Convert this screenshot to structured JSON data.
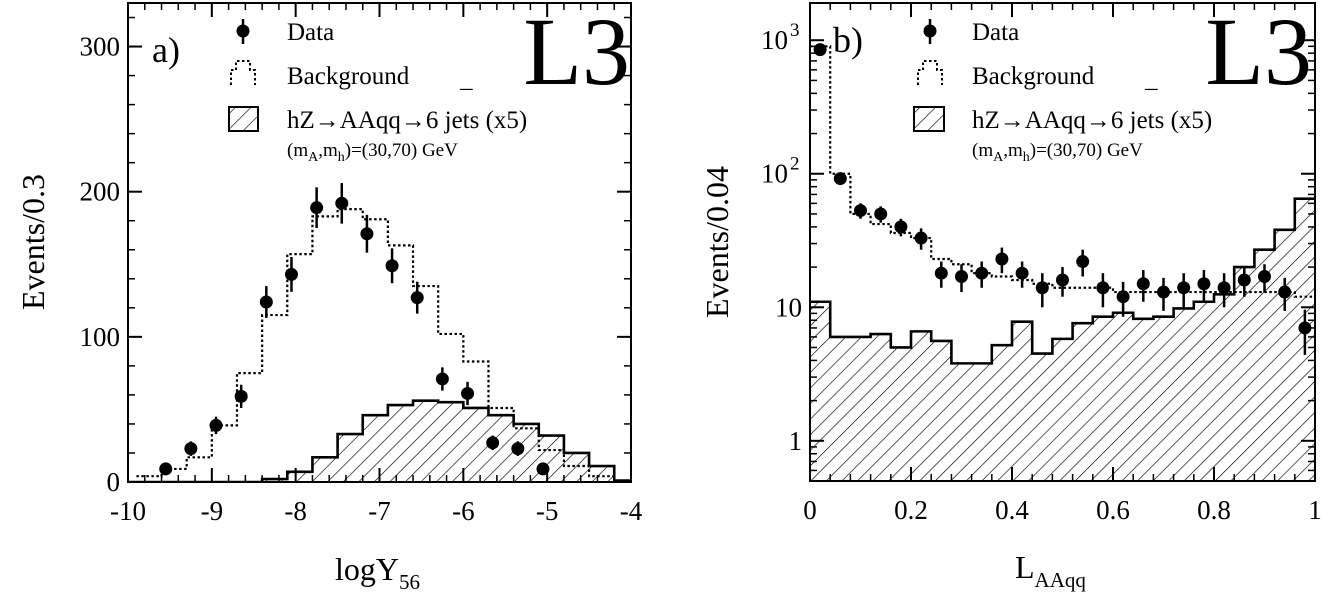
{
  "colors": {
    "ink": "#000000",
    "paper": "#ffffff"
  },
  "chart_data": [
    {
      "panel_label": "a)",
      "logo": "L3",
      "type": "histogram",
      "xlabel": "logY",
      "xlabel_sub": "56",
      "ylabel": "Events/0.3",
      "xlim": [
        -10,
        -4
      ],
      "ylim": [
        0,
        330
      ],
      "yscale": "linear",
      "xticks": [
        -10,
        -9,
        -8,
        -7,
        -6,
        -5,
        -4
      ],
      "xtick_labels": [
        "-10",
        "-9",
        "-8",
        "-7",
        "-6",
        "-5",
        "-4"
      ],
      "yticks": [
        0,
        100,
        200,
        300
      ],
      "ytick_labels": [
        "0",
        "100",
        "200",
        "300"
      ],
      "legend": {
        "position": "top-center",
        "data": "Data",
        "background": "Background",
        "signal_main": "hZ→AAqq→",
        "signal_qbar": "¯",
        "signal_tail": "6 jets (x5)",
        "signal_mass_m1": "(m",
        "signal_mass_sub_a": "A",
        "signal_mass_m2": ",m",
        "signal_mass_sub_h": "h",
        "signal_mass_tail": ")=(30,70) GeV"
      },
      "bin_edges": [
        -9.9,
        -9.6,
        -9.3,
        -9.0,
        -8.7,
        -8.4,
        -8.1,
        -7.8,
        -7.5,
        -7.2,
        -6.9,
        -6.6,
        -6.3,
        -6.0,
        -5.7,
        -5.4,
        -5.1,
        -4.8,
        -4.5,
        -4.2
      ],
      "background": [
        4,
        9,
        17,
        39,
        75,
        115,
        157,
        183,
        188,
        181,
        163,
        135,
        102,
        83,
        51,
        37,
        22,
        11,
        4
      ],
      "signal_edges": [
        -10,
        -9.9,
        -9.6,
        -9.3,
        -9.0,
        -8.7,
        -8.4,
        -8.1,
        -7.8,
        -7.5,
        -7.2,
        -6.9,
        -6.6,
        -6.3,
        -6.0,
        -5.7,
        -5.4,
        -5.1,
        -4.8,
        -4.5,
        -4.2,
        -4
      ],
      "signal": [
        0,
        0,
        0,
        0,
        0,
        0,
        2,
        7,
        17,
        33,
        46,
        53,
        56,
        55,
        51,
        46,
        40,
        32,
        20,
        11,
        1
      ],
      "data_points": [
        {
          "x": -9.55,
          "y": 9,
          "err": 4
        },
        {
          "x": -9.25,
          "y": 23,
          "err": 5
        },
        {
          "x": -8.95,
          "y": 39,
          "err": 6
        },
        {
          "x": -8.65,
          "y": 59,
          "err": 8
        },
        {
          "x": -8.35,
          "y": 124,
          "err": 11
        },
        {
          "x": -8.05,
          "y": 143,
          "err": 12
        },
        {
          "x": -7.75,
          "y": 189,
          "err": 14
        },
        {
          "x": -7.45,
          "y": 192,
          "err": 14
        },
        {
          "x": -7.15,
          "y": 171,
          "err": 13
        },
        {
          "x": -6.85,
          "y": 149,
          "err": 12
        },
        {
          "x": -6.55,
          "y": 127,
          "err": 11
        },
        {
          "x": -6.25,
          "y": 71,
          "err": 8
        },
        {
          "x": -5.95,
          "y": 61,
          "err": 8
        },
        {
          "x": -5.65,
          "y": 27,
          "err": 5
        },
        {
          "x": -5.35,
          "y": 23,
          "err": 5
        },
        {
          "x": -5.05,
          "y": 9,
          "err": 3
        }
      ]
    },
    {
      "panel_label": "b)",
      "logo": "L3",
      "type": "histogram",
      "xlabel": "L",
      "xlabel_sub": "AAqq",
      "ylabel": "Events/0.04",
      "xlim": [
        0,
        1
      ],
      "ylim": [
        0.5,
        1900
      ],
      "yscale": "log",
      "xticks": [
        0,
        0.2,
        0.4,
        0.6,
        0.8,
        1
      ],
      "xtick_labels": [
        "0",
        "0.2",
        "0.4",
        "0.6",
        "0.8",
        "1"
      ],
      "yticks": [
        1,
        10,
        100,
        1000
      ],
      "ytick_labels": [
        {
          "base": "1",
          "exp": ""
        },
        {
          "base": "10",
          "exp": ""
        },
        {
          "base": "10",
          "exp": "2"
        },
        {
          "base": "10",
          "exp": "3"
        }
      ],
      "legend": {
        "position": "top-center",
        "data": "Data",
        "background": "Background",
        "signal_main": "hZ→AAqq→",
        "signal_qbar": "¯",
        "signal_tail": "6 jets (x5)",
        "signal_mass_m1": "(m",
        "signal_mass_sub_a": "A",
        "signal_mass_m2": ",m",
        "signal_mass_sub_h": "h",
        "signal_mass_tail": ")=(30,70) GeV"
      },
      "bin_edges": [
        0,
        0.04,
        0.08,
        0.12,
        0.16,
        0.2,
        0.24,
        0.28,
        0.32,
        0.36,
        0.4,
        0.44,
        0.48,
        0.52,
        0.56,
        0.6,
        0.64,
        0.68,
        0.72,
        0.76,
        0.8,
        0.84,
        0.88,
        0.92,
        0.96,
        1
      ],
      "background": [
        900,
        100,
        50,
        42,
        36,
        33,
        23,
        21,
        18,
        17,
        16,
        15,
        14,
        14,
        14,
        13,
        13,
        13,
        13,
        13,
        13,
        13,
        13,
        13,
        12
      ],
      "signal": [
        11,
        6,
        6,
        6.3,
        5,
        6.6,
        5.6,
        3.8,
        3.8,
        5.2,
        7.8,
        4.5,
        5.8,
        7.6,
        8.5,
        9.1,
        8.2,
        8.5,
        9.8,
        11,
        12.5,
        20,
        27,
        38,
        65
      ],
      "data_points": [
        {
          "x": 0.02,
          "y": 850,
          "err": 29
        },
        {
          "x": 0.06,
          "y": 92,
          "err": 9
        },
        {
          "x": 0.1,
          "y": 53,
          "err": 7
        },
        {
          "x": 0.14,
          "y": 50,
          "err": 7
        },
        {
          "x": 0.18,
          "y": 40,
          "err": 6
        },
        {
          "x": 0.22,
          "y": 33,
          "err": 6
        },
        {
          "x": 0.26,
          "y": 18,
          "err": 4
        },
        {
          "x": 0.3,
          "y": 17,
          "err": 4
        },
        {
          "x": 0.34,
          "y": 18,
          "err": 4
        },
        {
          "x": 0.38,
          "y": 23,
          "err": 5
        },
        {
          "x": 0.42,
          "y": 18,
          "err": 4
        },
        {
          "x": 0.46,
          "y": 14,
          "err": 4
        },
        {
          "x": 0.5,
          "y": 16,
          "err": 4
        },
        {
          "x": 0.54,
          "y": 22,
          "err": 5
        },
        {
          "x": 0.58,
          "y": 14,
          "err": 4
        },
        {
          "x": 0.62,
          "y": 12,
          "err": 3.5
        },
        {
          "x": 0.66,
          "y": 15,
          "err": 4
        },
        {
          "x": 0.7,
          "y": 13,
          "err": 3.6
        },
        {
          "x": 0.74,
          "y": 14,
          "err": 4
        },
        {
          "x": 0.78,
          "y": 15,
          "err": 4
        },
        {
          "x": 0.82,
          "y": 14,
          "err": 4
        },
        {
          "x": 0.86,
          "y": 16,
          "err": 4
        },
        {
          "x": 0.9,
          "y": 17,
          "err": 4
        },
        {
          "x": 0.94,
          "y": 13,
          "err": 3.6
        },
        {
          "x": 0.98,
          "y": 7,
          "err": 2.6
        }
      ]
    }
  ]
}
